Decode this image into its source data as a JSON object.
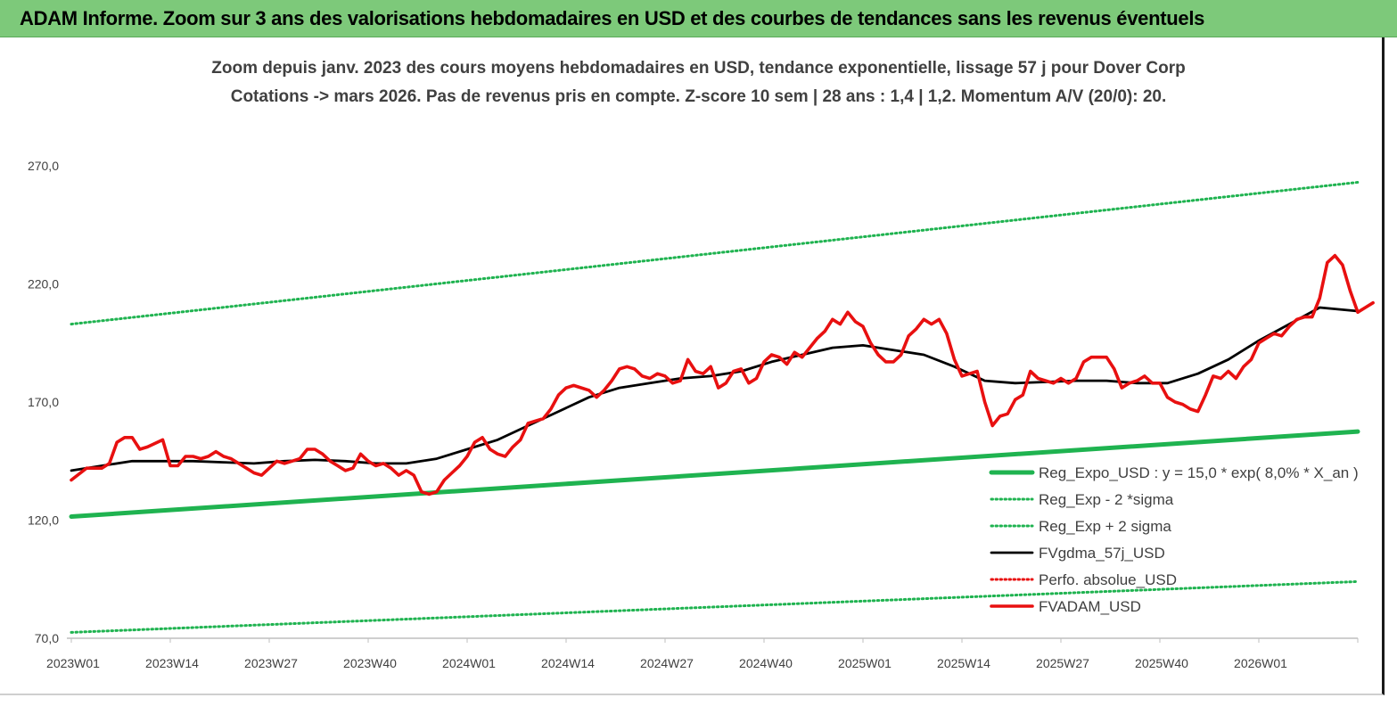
{
  "banner": {
    "title": "ADAM Informe. Zoom sur 3 ans des valorisations hebdomadaires en USD et des courbes de tendances sans les revenus éventuels"
  },
  "chart_data": {
    "type": "line",
    "title": "Zoom depuis janv. 2023 des cours moyens hebdomadaires en USD, tendance exponentielle, lissage 57 j pour Dover Corp",
    "subtitle": "Cotations -> mars 2026. Pas de revenus pris en compte. Z-score 10 sem | 28 ans : 1,4 | 1,2. Momentum A/V (20/0): 20.",
    "xlabel": "",
    "ylabel": "",
    "ylim": [
      70,
      290
    ],
    "yticks": [
      70,
      120,
      170,
      220,
      270
    ],
    "ytick_labels": [
      "70,0",
      "120,0",
      "170,0",
      "220,0",
      "270,0"
    ],
    "xticks": [
      {
        "week": 0,
        "label": "2023W01"
      },
      {
        "week": 13,
        "label": "2023W14"
      },
      {
        "week": 26,
        "label": "2023W27"
      },
      {
        "week": 39,
        "label": "2023W40"
      },
      {
        "week": 52,
        "label": "2024W01"
      },
      {
        "week": 65,
        "label": "2024W14"
      },
      {
        "week": 78,
        "label": "2024W27"
      },
      {
        "week": 91,
        "label": "2024W40"
      },
      {
        "week": 104,
        "label": "2025W01"
      },
      {
        "week": 117,
        "label": "2025W14"
      },
      {
        "week": 130,
        "label": "2025W27"
      },
      {
        "week": 143,
        "label": "2025W40"
      },
      {
        "week": 156,
        "label": "2026W01"
      }
    ],
    "x_max_week": 169,
    "grid": false,
    "legend_position": "bottom-right",
    "series": [
      {
        "name": "Reg_Expo_USD : y = 15,0 * exp( 8,0% *  X_an )",
        "color": "#1fb350",
        "style": "thick",
        "points": [
          [
            0,
            121.5
          ],
          [
            169,
            157.5
          ]
        ]
      },
      {
        "name": "Reg_Exp - 2 *sigma",
        "color": "#1fb350",
        "style": "dotted",
        "points": [
          [
            0,
            72.5
          ],
          [
            169,
            94
          ]
        ]
      },
      {
        "name": "Reg_Exp + 2 sigma",
        "color": "#1fb350",
        "style": "dotted",
        "points": [
          [
            0,
            203
          ],
          [
            169,
            263
          ]
        ]
      },
      {
        "name": "FVgdma_57j_USD",
        "color": "#000000",
        "style": "solid",
        "points": [
          [
            0,
            141
          ],
          [
            4,
            143
          ],
          [
            8,
            145
          ],
          [
            12,
            145
          ],
          [
            16,
            145
          ],
          [
            20,
            144.5
          ],
          [
            24,
            144
          ],
          [
            28,
            145
          ],
          [
            32,
            145.5
          ],
          [
            36,
            145
          ],
          [
            40,
            144
          ],
          [
            44,
            144
          ],
          [
            48,
            146
          ],
          [
            52,
            150
          ],
          [
            56,
            154
          ],
          [
            60,
            160
          ],
          [
            64,
            166
          ],
          [
            68,
            172
          ],
          [
            72,
            176
          ],
          [
            76,
            178
          ],
          [
            80,
            180
          ],
          [
            84,
            181
          ],
          [
            88,
            183
          ],
          [
            92,
            187
          ],
          [
            96,
            190
          ],
          [
            100,
            193
          ],
          [
            104,
            194
          ],
          [
            108,
            192
          ],
          [
            112,
            190
          ],
          [
            116,
            185
          ],
          [
            120,
            179
          ],
          [
            124,
            178
          ],
          [
            128,
            178.5
          ],
          [
            132,
            179
          ],
          [
            136,
            179
          ],
          [
            140,
            178
          ],
          [
            144,
            178
          ],
          [
            148,
            182
          ],
          [
            152,
            188
          ],
          [
            156,
            196
          ],
          [
            160,
            203
          ],
          [
            164,
            210
          ],
          [
            169,
            208.5
          ]
        ]
      },
      {
        "name": "Perfo. absolue_USD",
        "color": "#e81010",
        "style": "dotted",
        "points": []
      },
      {
        "name": "FVADAM_USD",
        "color": "#e81010",
        "style": "thick-solid",
        "points": [
          [
            0,
            137
          ],
          [
            2,
            142
          ],
          [
            4,
            142
          ],
          [
            5,
            144
          ],
          [
            6,
            153
          ],
          [
            7,
            155
          ],
          [
            8,
            155
          ],
          [
            9,
            150
          ],
          [
            10,
            151
          ],
          [
            12,
            154
          ],
          [
            13,
            143
          ],
          [
            14,
            143
          ],
          [
            15,
            147
          ],
          [
            16,
            147
          ],
          [
            17,
            146
          ],
          [
            18,
            147
          ],
          [
            19,
            149
          ],
          [
            20,
            147
          ],
          [
            21,
            146
          ],
          [
            22,
            144
          ],
          [
            23,
            142
          ],
          [
            24,
            140
          ],
          [
            25,
            139
          ],
          [
            26,
            142
          ],
          [
            27,
            145
          ],
          [
            28,
            144
          ],
          [
            29,
            145
          ],
          [
            30,
            146
          ],
          [
            31,
            150
          ],
          [
            32,
            150
          ],
          [
            33,
            148
          ],
          [
            34,
            145
          ],
          [
            35,
            143
          ],
          [
            36,
            141
          ],
          [
            37,
            142
          ],
          [
            38,
            148
          ],
          [
            39,
            145
          ],
          [
            40,
            143
          ],
          [
            41,
            144
          ],
          [
            42,
            142
          ],
          [
            43,
            139
          ],
          [
            44,
            141
          ],
          [
            45,
            139
          ],
          [
            46,
            132
          ],
          [
            47,
            131
          ],
          [
            48,
            132
          ],
          [
            49,
            137
          ],
          [
            50,
            140
          ],
          [
            51,
            143
          ],
          [
            52,
            147
          ],
          [
            53,
            153
          ],
          [
            54,
            155
          ],
          [
            55,
            150
          ],
          [
            56,
            148
          ],
          [
            57,
            147
          ],
          [
            58,
            151
          ],
          [
            59,
            154
          ],
          [
            60,
            161
          ],
          [
            61,
            162
          ],
          [
            62,
            163
          ],
          [
            63,
            167
          ],
          [
            64,
            173
          ],
          [
            65,
            176
          ],
          [
            66,
            177
          ],
          [
            67,
            176
          ],
          [
            68,
            175
          ],
          [
            69,
            172
          ],
          [
            70,
            175
          ],
          [
            71,
            179
          ],
          [
            72,
            184
          ],
          [
            73,
            185
          ],
          [
            74,
            184
          ],
          [
            75,
            181
          ],
          [
            76,
            180
          ],
          [
            77,
            182
          ],
          [
            78,
            181
          ],
          [
            79,
            178
          ],
          [
            80,
            179
          ],
          [
            81,
            188
          ],
          [
            82,
            183
          ],
          [
            83,
            182
          ],
          [
            84,
            185
          ],
          [
            85,
            176
          ],
          [
            86,
            178
          ],
          [
            87,
            183
          ],
          [
            88,
            184
          ],
          [
            89,
            178
          ],
          [
            90,
            180
          ],
          [
            91,
            187
          ],
          [
            92,
            190
          ],
          [
            93,
            189
          ],
          [
            94,
            186
          ],
          [
            95,
            191
          ],
          [
            96,
            189
          ],
          [
            97,
            193
          ],
          [
            98,
            197
          ],
          [
            99,
            200
          ],
          [
            100,
            205
          ],
          [
            101,
            203
          ],
          [
            102,
            208
          ],
          [
            103,
            204
          ],
          [
            104,
            202
          ],
          [
            105,
            195
          ],
          [
            106,
            190
          ],
          [
            107,
            187
          ],
          [
            108,
            187
          ],
          [
            109,
            190
          ],
          [
            110,
            198
          ],
          [
            111,
            201
          ],
          [
            112,
            205
          ],
          [
            113,
            203
          ],
          [
            114,
            205
          ],
          [
            115,
            199
          ],
          [
            116,
            188
          ],
          [
            117,
            181
          ],
          [
            118,
            182
          ],
          [
            119,
            183
          ],
          [
            120,
            170
          ],
          [
            121,
            160
          ],
          [
            122,
            164
          ],
          [
            123,
            165
          ],
          [
            124,
            171
          ],
          [
            125,
            173
          ],
          [
            126,
            183
          ],
          [
            127,
            180
          ],
          [
            128,
            179
          ],
          [
            129,
            178
          ],
          [
            130,
            180
          ],
          [
            131,
            178
          ],
          [
            132,
            180
          ],
          [
            133,
            187
          ],
          [
            134,
            189
          ],
          [
            135,
            189
          ],
          [
            136,
            189
          ],
          [
            137,
            184
          ],
          [
            138,
            176
          ],
          [
            139,
            178
          ],
          [
            140,
            179
          ],
          [
            141,
            181
          ],
          [
            142,
            178
          ],
          [
            143,
            178
          ],
          [
            144,
            172
          ],
          [
            145,
            170
          ],
          [
            146,
            169
          ],
          [
            147,
            167
          ],
          [
            148,
            166
          ],
          [
            149,
            173
          ],
          [
            150,
            181
          ],
          [
            151,
            180
          ],
          [
            152,
            183
          ],
          [
            153,
            180
          ],
          [
            154,
            185
          ],
          [
            155,
            188
          ],
          [
            156,
            195
          ],
          [
            157,
            197
          ],
          [
            158,
            199
          ],
          [
            159,
            198
          ],
          [
            160,
            202
          ],
          [
            161,
            205
          ],
          [
            162,
            206
          ],
          [
            163,
            206
          ],
          [
            164,
            214
          ],
          [
            165,
            229
          ],
          [
            166,
            232
          ],
          [
            167,
            228
          ],
          [
            168,
            217
          ],
          [
            169,
            208
          ],
          [
            170,
            210
          ],
          [
            171,
            212
          ]
        ]
      }
    ]
  }
}
